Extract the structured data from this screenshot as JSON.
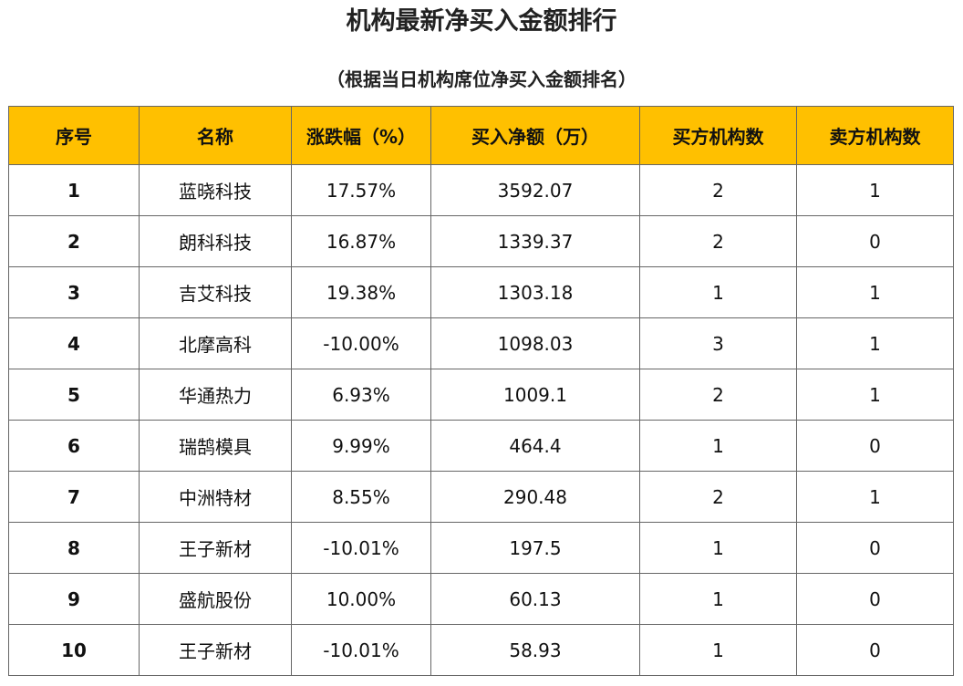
{
  "title": "机构最新净买入金额排行",
  "subtitle": "（根据当日机构席位净买入金额排名）",
  "colors": {
    "header_bg": "#FFC000",
    "border": "#666666",
    "text": "#111111"
  },
  "chart_data": {
    "type": "table",
    "title": "机构最新净买入金额排行",
    "subtitle": "（根据当日机构席位净买入金额排名）",
    "columns": [
      "序号",
      "名称",
      "涨跌幅（%）",
      "买入净额（万）",
      "买方机构数",
      "卖方机构数"
    ],
    "rows": [
      [
        "1",
        "蓝晓科技",
        "17.57%",
        "3592.07",
        "2",
        "1"
      ],
      [
        "2",
        "朗科科技",
        "16.87%",
        "1339.37",
        "2",
        "0"
      ],
      [
        "3",
        "吉艾科技",
        "19.38%",
        "1303.18",
        "1",
        "1"
      ],
      [
        "4",
        "北摩高科",
        "-10.00%",
        "1098.03",
        "3",
        "1"
      ],
      [
        "5",
        "华通热力",
        "6.93%",
        "1009.1",
        "2",
        "1"
      ],
      [
        "6",
        "瑞鹄模具",
        "9.99%",
        "464.4",
        "1",
        "0"
      ],
      [
        "7",
        "中洲特材",
        "8.55%",
        "290.48",
        "2",
        "1"
      ],
      [
        "8",
        "王子新材",
        "-10.01%",
        "197.5",
        "1",
        "0"
      ],
      [
        "9",
        "盛航股份",
        "10.00%",
        "60.13",
        "1",
        "0"
      ],
      [
        "10",
        "王子新材",
        "-10.01%",
        "58.93",
        "1",
        "0"
      ]
    ]
  }
}
